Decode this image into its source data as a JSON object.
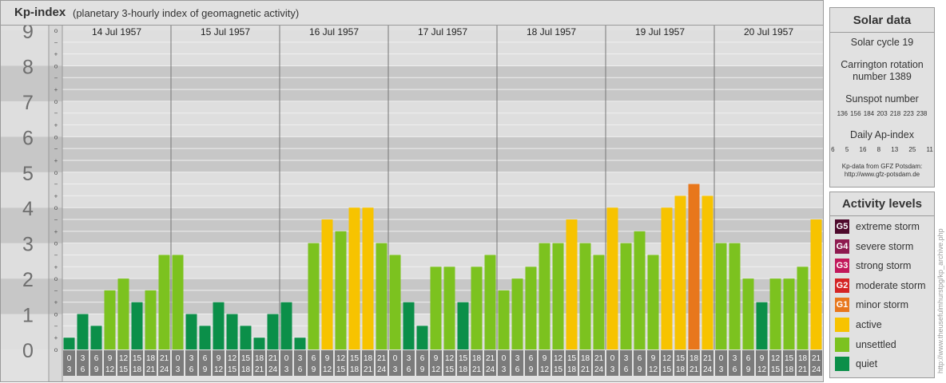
{
  "header": {
    "title": "Kp-index",
    "subtitle": "(planetary 3-hourly index of geomagnetic activity)"
  },
  "chart_data": {
    "type": "bar",
    "y_major_labels": [
      "0",
      "1",
      "2",
      "3",
      "4",
      "5",
      "6",
      "7",
      "8",
      "9"
    ],
    "y_minor_labels": [
      "o",
      "+",
      "−",
      "o",
      "+",
      "−",
      "o",
      "+",
      "−",
      "o",
      "+",
      "−",
      "o",
      "+",
      "−",
      "o",
      "+",
      "−",
      "o",
      "+",
      "−",
      "o",
      "+",
      "−",
      "o",
      "+",
      "−",
      "o"
    ],
    "ylim": [
      0,
      9
    ],
    "days": [
      "14 Jul 1957",
      "15 Jul 1957",
      "16 Jul 1957",
      "17 Jul 1957",
      "18 Jul 1957",
      "19 Jul 1957",
      "20 Jul 1957"
    ],
    "interval_start": [
      "0",
      "3",
      "6",
      "9",
      "12",
      "15",
      "18",
      "21"
    ],
    "interval_end": [
      "3",
      "6",
      "9",
      "12",
      "15",
      "18",
      "21",
      "24"
    ],
    "values": [
      0.333,
      1.0,
      0.667,
      1.667,
      2.0,
      1.333,
      1.667,
      2.667,
      2.667,
      1.0,
      0.667,
      1.333,
      1.0,
      0.667,
      0.333,
      1.0,
      1.333,
      0.333,
      3.0,
      3.667,
      3.333,
      4.0,
      4.0,
      3.0,
      2.667,
      1.333,
      0.667,
      2.333,
      2.333,
      1.333,
      2.333,
      2.667,
      1.667,
      2.0,
      2.333,
      3.0,
      3.0,
      3.667,
      3.0,
      2.667,
      4.0,
      3.0,
      3.333,
      2.667,
      4.0,
      4.333,
      4.667,
      4.333,
      3.0,
      3.0,
      2.0,
      1.333,
      2.0,
      2.0,
      2.333,
      3.667
    ],
    "colors": {
      "quiet": "#0b8f49",
      "unsettled": "#7cc21f",
      "active": "#f7c300",
      "g1": "#e8771c",
      "g2": "#d42325",
      "g3": "#c2185b",
      "g4": "#8e1a4f",
      "g5": "#4e0a2c",
      "band_dark": "#c7c7c7",
      "band_light": "#dedede",
      "label_bg": "#7b7b7b"
    }
  },
  "solar_data": {
    "title": "Solar data",
    "solar_cycle": "Solar cycle 19",
    "carrington_line1": "Carrington rotation",
    "carrington_line2": "number 1389",
    "sunspot_title": "Sunspot number",
    "sunspot_values": "136 156 184 203 218 223 238",
    "ap_title": "Daily Ap-index",
    "ap_values": "6 5 16 8 13 25 11",
    "source_line1": "Kp-data from GFZ Potsdam:",
    "source_line2": "http://www.gfz-potsdam.de"
  },
  "activity_levels": {
    "title": "Activity levels",
    "items": [
      {
        "code": "G5",
        "label": "extreme storm",
        "color": "#4e0a2c"
      },
      {
        "code": "G4",
        "label": "severe storm",
        "color": "#8e1a4f"
      },
      {
        "code": "G3",
        "label": "strong storm",
        "color": "#c2185b"
      },
      {
        "code": "G2",
        "label": "moderate storm",
        "color": "#d42325"
      },
      {
        "code": "G1",
        "label": "minor storm",
        "color": "#e8771c"
      },
      {
        "code": "",
        "label": "active",
        "color": "#f7c300"
      },
      {
        "code": "",
        "label": "unsettled",
        "color": "#7cc21f"
      },
      {
        "code": "",
        "label": "quiet",
        "color": "#0b8f49"
      }
    ]
  },
  "watermark": "http://www.theusefulmhurstpg/kp_archive.php"
}
